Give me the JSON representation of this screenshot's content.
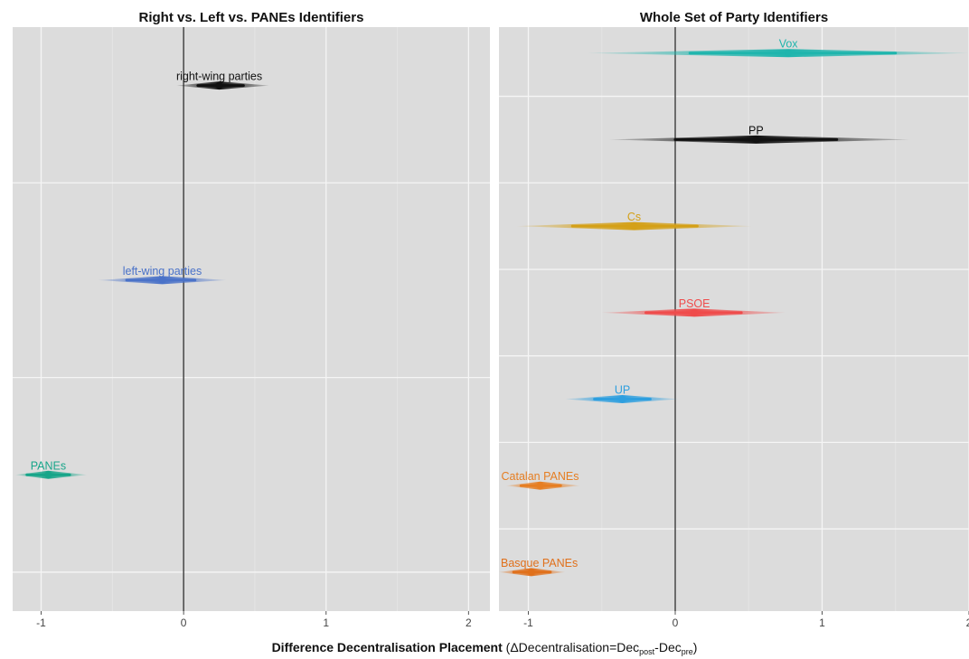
{
  "chart_data": [
    {
      "type": "scatter",
      "subtype": "interval-estimate",
      "title": "Right vs. Left vs. PANEs Identifiers",
      "xlim": [
        -1.2,
        2.15
      ],
      "ylim": [
        0.3,
        3.3
      ],
      "x_ticks": [
        -1,
        0,
        1,
        2
      ],
      "grid": true,
      "reference_line_x": 0,
      "series": [
        {
          "name": "right-wing parties",
          "color": "#111111",
          "y": 3,
          "x": 0.25,
          "ci_outer": [
            -0.05,
            0.6
          ],
          "ci_inner": [
            0.1,
            0.42
          ]
        },
        {
          "name": "left-wing parties",
          "color": "#4a72c8",
          "y": 2,
          "x": -0.15,
          "ci_outer": [
            -0.6,
            0.3
          ],
          "ci_inner": [
            -0.4,
            0.08
          ]
        },
        {
          "name": "PANEs",
          "color": "#17a589",
          "y": 1,
          "x": -0.95,
          "ci_outer": [
            -1.18,
            -0.68
          ],
          "ci_inner": [
            -1.1,
            -0.8
          ]
        }
      ]
    },
    {
      "type": "scatter",
      "subtype": "interval-estimate",
      "title": "Whole Set of Party Identifiers",
      "xlim": [
        -1.2,
        2.0
      ],
      "ylim": [
        0.55,
        7.3
      ],
      "x_ticks": [
        -1,
        0,
        1,
        2
      ],
      "grid": true,
      "reference_line_x": 0,
      "series": [
        {
          "name": "Vox",
          "color": "#1fb5ad",
          "y": 7,
          "x": 0.77,
          "ci_outer": [
            -0.6,
            2.0
          ],
          "ci_inner": [
            0.1,
            1.5
          ]
        },
        {
          "name": "PP",
          "color": "#111111",
          "y": 6,
          "x": 0.55,
          "ci_outer": [
            -0.45,
            1.6
          ],
          "ci_inner": [
            0.0,
            1.1
          ]
        },
        {
          "name": "Cs",
          "color": "#d4a017",
          "y": 5,
          "x": -0.28,
          "ci_outer": [
            -1.08,
            0.52
          ],
          "ci_inner": [
            -0.7,
            0.15
          ]
        },
        {
          "name": "PSOE",
          "color": "#ef4b4b",
          "y": 4,
          "x": 0.13,
          "ci_outer": [
            -0.5,
            0.75
          ],
          "ci_inner": [
            -0.2,
            0.45
          ]
        },
        {
          "name": "UP",
          "color": "#2e9fdf",
          "y": 3,
          "x": -0.36,
          "ci_outer": [
            -0.75,
            0.02
          ],
          "ci_inner": [
            -0.55,
            -0.17
          ]
        },
        {
          "name": "Catalan PANEs",
          "color": "#e67e22",
          "y": 2,
          "x": -0.92,
          "ci_outer": [
            -1.15,
            -0.65
          ],
          "ci_inner": [
            -1.05,
            -0.78
          ]
        },
        {
          "name": "Basque PANEs",
          "color": "#e0701b",
          "y": 1,
          "x": -0.98,
          "ci_outer": [
            -1.2,
            -0.75
          ],
          "ci_inner": [
            -1.1,
            -0.85
          ]
        }
      ]
    }
  ],
  "x_axis_title": {
    "bold": "Difference Decentralisation Placement",
    "rest": " (ΔDecentralisation=Dec",
    "sub1": "post",
    "mid": "-Dec",
    "sub2": "pre",
    "end": ")"
  }
}
